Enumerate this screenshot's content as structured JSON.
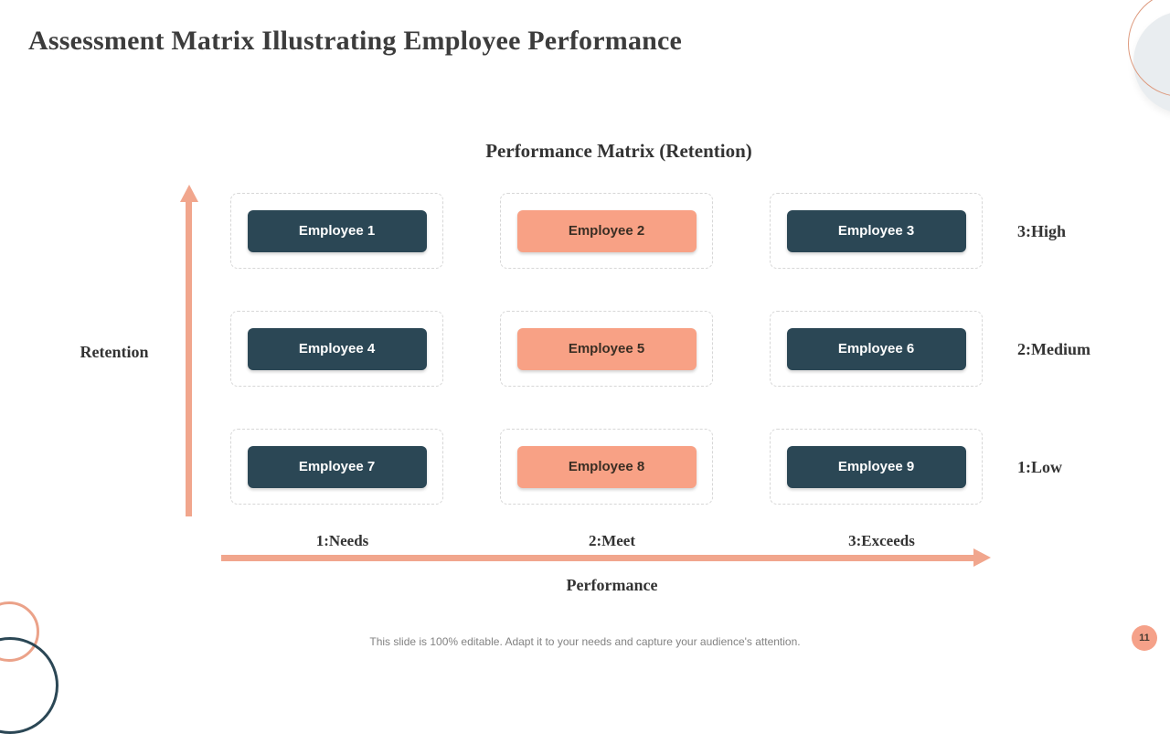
{
  "slide": {
    "title": "Assessment Matrix Illustrating Employee Performance",
    "footer_note": "This slide is 100% editable. Adapt it to your needs and capture your audience's attention.",
    "page_number": "11"
  },
  "matrix": {
    "title": "Performance Matrix (Retention)",
    "x_axis": {
      "label": "Performance",
      "ticks": [
        "1:Needs",
        "2:Meet",
        "3:Exceeds"
      ]
    },
    "y_axis": {
      "label": "Retention",
      "ticks": [
        "3:High",
        "2:Medium",
        "1:Low"
      ]
    },
    "cells": [
      {
        "label": "Employee 1",
        "variant": "dark"
      },
      {
        "label": "Employee 2",
        "variant": "accent"
      },
      {
        "label": "Employee 3",
        "variant": "dark"
      },
      {
        "label": "Employee 4",
        "variant": "dark"
      },
      {
        "label": "Employee 5",
        "variant": "accent"
      },
      {
        "label": "Employee 6",
        "variant": "dark"
      },
      {
        "label": "Employee 7",
        "variant": "dark"
      },
      {
        "label": "Employee 8",
        "variant": "accent"
      },
      {
        "label": "Employee 9",
        "variant": "dark"
      }
    ]
  },
  "colors": {
    "accent_salmon": "#f8a185",
    "arrow_salmon": "#f1a68d",
    "dark_teal": "#2b4755",
    "title_gray": "#3c3c3c",
    "footer_gray": "#828282"
  }
}
